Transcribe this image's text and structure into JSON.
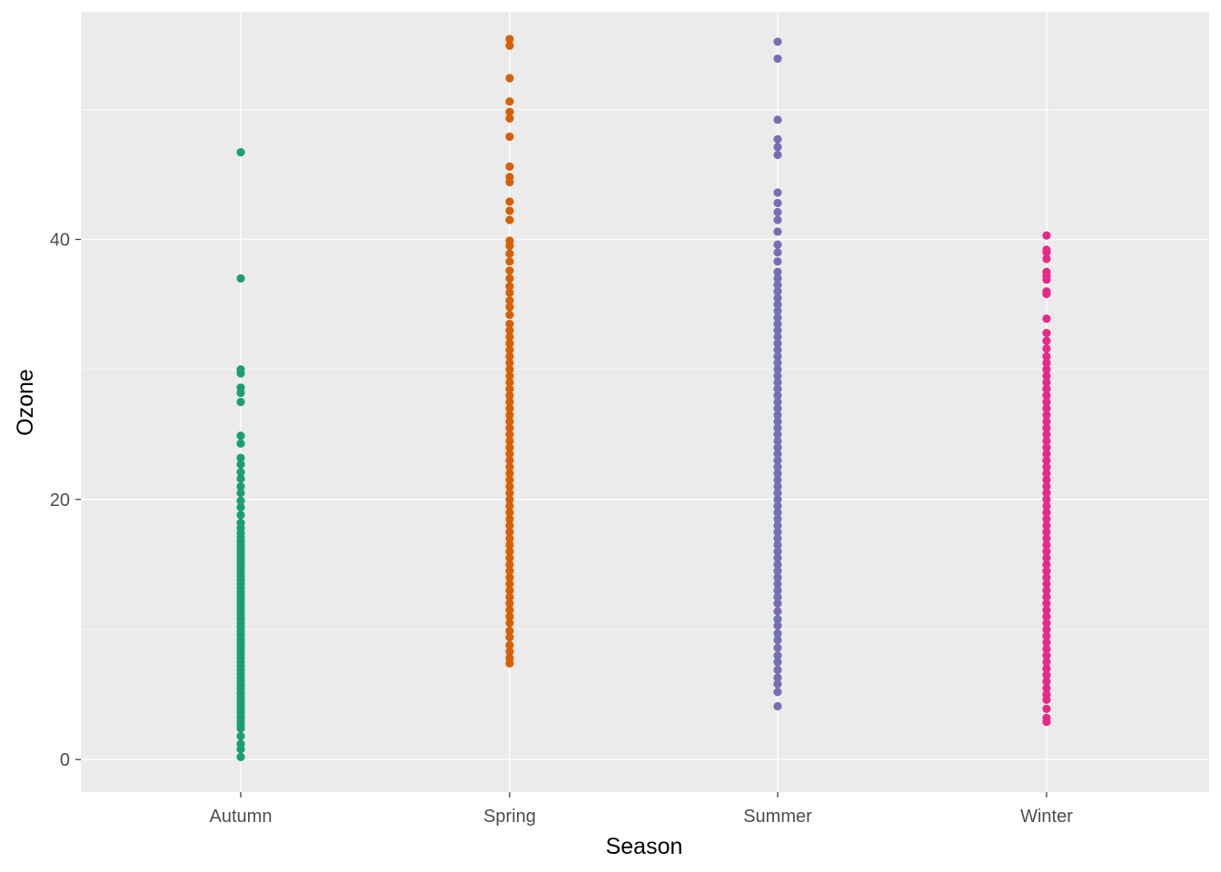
{
  "chart_data": {
    "type": "scatter",
    "title": "",
    "xlabel": "Season",
    "ylabel": "Ozone",
    "categories": [
      "Autumn",
      "Spring",
      "Summer",
      "Winter"
    ],
    "ylim": [
      -2.5,
      57.5
    ],
    "yticks": [
      0,
      20,
      40
    ],
    "grid": true,
    "legend": "none",
    "colors": [
      "#1b9e77",
      "#d95f02",
      "#7570b3",
      "#e7298a"
    ],
    "panel_background": "#ebebeb",
    "series": [
      {
        "category": "Autumn",
        "values": [
          0.2,
          0.8,
          1.2,
          1.8,
          2.4,
          2.7,
          3.0,
          3.3,
          3.6,
          3.9,
          4.2,
          4.5,
          4.8,
          5.1,
          5.4,
          5.7,
          6.0,
          6.3,
          6.6,
          6.9,
          7.2,
          7.5,
          7.8,
          8.1,
          8.4,
          8.7,
          9.0,
          9.3,
          9.6,
          9.9,
          10.2,
          10.5,
          10.8,
          11.1,
          11.4,
          11.7,
          12.0,
          12.3,
          12.6,
          12.9,
          13.2,
          13.5,
          13.8,
          14.1,
          14.4,
          14.7,
          15.0,
          15.3,
          15.6,
          15.9,
          16.2,
          16.5,
          16.8,
          17.1,
          17.4,
          17.8,
          18.2,
          18.8,
          19.4,
          19.9,
          20.5,
          21.0,
          21.6,
          22.1,
          22.7,
          23.2,
          24.3,
          24.9,
          27.5,
          28.2,
          28.6,
          29.7,
          30.0,
          37.0,
          46.7
        ]
      },
      {
        "category": "Spring",
        "values": [
          7.4,
          7.8,
          8.3,
          8.8,
          9.4,
          9.9,
          10.5,
          11.0,
          11.5,
          12.0,
          12.5,
          13.0,
          13.5,
          14.0,
          14.5,
          15.0,
          15.5,
          16.0,
          16.5,
          17.0,
          17.5,
          18.0,
          18.5,
          19.0,
          19.5,
          20.0,
          20.5,
          21.0,
          21.5,
          22.0,
          22.5,
          23.0,
          23.5,
          24.0,
          24.5,
          25.0,
          25.5,
          26.0,
          26.5,
          27.0,
          27.5,
          28.0,
          28.5,
          29.0,
          29.5,
          30.0,
          30.5,
          31.0,
          31.5,
          32.0,
          32.5,
          33.0,
          33.5,
          34.2,
          34.8,
          35.3,
          35.9,
          36.4,
          37.0,
          37.6,
          38.3,
          38.9,
          39.5,
          39.9,
          41.5,
          42.2,
          42.9,
          44.4,
          44.8,
          45.6,
          47.9,
          49.3,
          49.8,
          50.6,
          52.4,
          54.9,
          55.4
        ]
      },
      {
        "category": "Summer",
        "values": [
          4.1,
          5.2,
          5.8,
          6.3,
          6.9,
          7.5,
          8.0,
          8.6,
          9.2,
          9.7,
          10.3,
          10.8,
          11.4,
          12.0,
          12.5,
          13.0,
          13.5,
          14.0,
          14.5,
          15.0,
          15.5,
          16.0,
          16.5,
          17.0,
          17.5,
          18.0,
          18.5,
          19.0,
          19.5,
          20.0,
          20.5,
          21.0,
          21.5,
          22.0,
          22.5,
          23.0,
          23.5,
          24.0,
          24.5,
          25.0,
          25.5,
          26.0,
          26.5,
          27.0,
          27.5,
          28.0,
          28.5,
          29.0,
          29.5,
          30.0,
          30.5,
          31.0,
          31.5,
          32.0,
          32.5,
          33.0,
          33.5,
          34.0,
          34.5,
          35.0,
          35.5,
          36.0,
          36.5,
          37.0,
          37.5,
          38.3,
          39.0,
          39.6,
          40.6,
          41.5,
          42.1,
          42.8,
          43.6,
          46.5,
          47.1,
          47.7,
          49.2,
          53.9,
          55.2
        ]
      },
      {
        "category": "Winter",
        "values": [
          2.9,
          3.2,
          3.9,
          4.6,
          5.0,
          5.5,
          6.0,
          6.5,
          7.0,
          7.5,
          8.0,
          8.5,
          9.0,
          9.5,
          10.0,
          10.5,
          11.0,
          11.5,
          12.0,
          12.5,
          13.0,
          13.5,
          14.0,
          14.5,
          15.0,
          15.5,
          16.0,
          16.5,
          17.0,
          17.5,
          18.0,
          18.5,
          19.0,
          19.5,
          20.0,
          20.5,
          21.0,
          21.5,
          22.0,
          22.5,
          23.0,
          23.5,
          24.0,
          24.5,
          25.0,
          25.5,
          26.0,
          26.5,
          27.0,
          27.5,
          28.0,
          28.5,
          29.0,
          29.5,
          30.0,
          30.5,
          31.0,
          31.6,
          32.2,
          32.8,
          33.9,
          35.8,
          36.0,
          36.9,
          37.2,
          37.5,
          38.5,
          39.0,
          39.2,
          40.3
        ]
      }
    ]
  }
}
